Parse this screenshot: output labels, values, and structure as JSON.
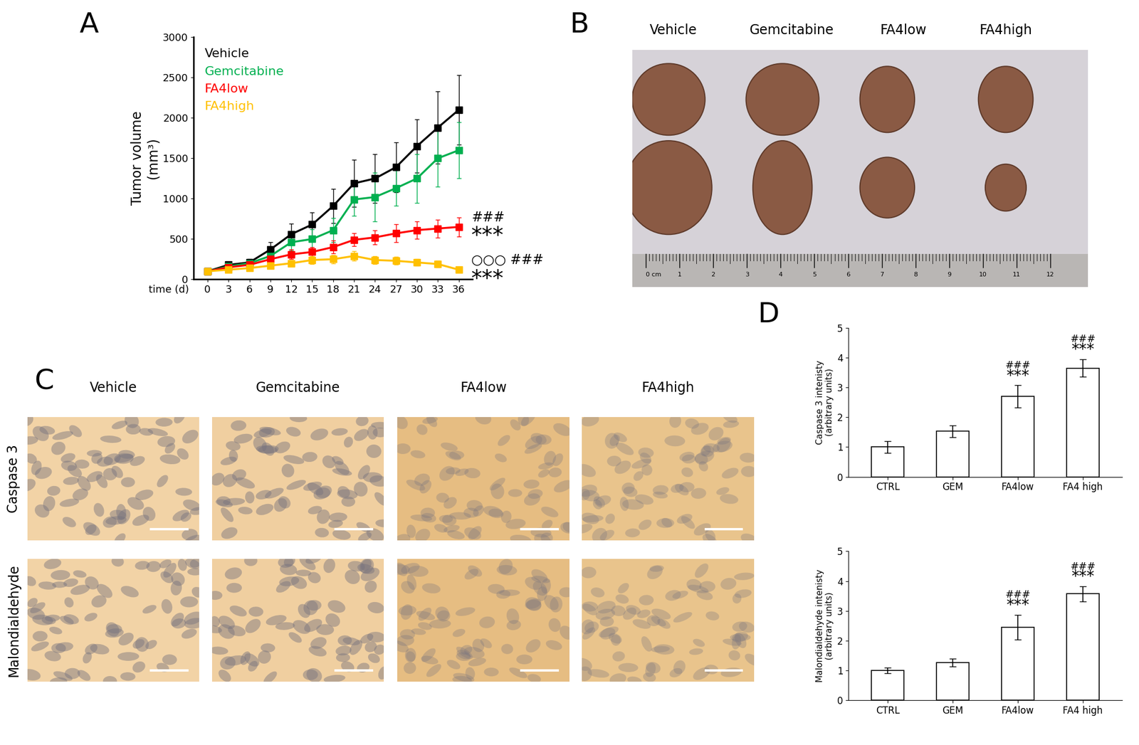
{
  "chart_data": [
    {
      "type": "line",
      "panel": "A",
      "xlabel": "time (d)",
      "ylabel": "Tumor volume\n(mm³)",
      "x": [
        0,
        3,
        6,
        9,
        12,
        15,
        18,
        21,
        24,
        27,
        30,
        33,
        36
      ],
      "xlim": [
        -2,
        38
      ],
      "xticks": [
        0,
        3,
        6,
        9,
        12,
        15,
        18,
        21,
        24,
        27,
        30,
        33,
        36
      ],
      "ylim": [
        0,
        3000
      ],
      "yticks": [
        0,
        500,
        1000,
        1500,
        2000,
        2500,
        3000
      ],
      "legend": "upper left",
      "marker": "square",
      "line_style": "solid",
      "series": [
        {
          "name": "Vehicle",
          "color": "#000000",
          "values": [
            100,
            180,
            210,
            370,
            560,
            680,
            910,
            1190,
            1250,
            1390,
            1650,
            1880,
            2100
          ],
          "errors": [
            0,
            30,
            40,
            90,
            130,
            150,
            210,
            290,
            300,
            310,
            330,
            450,
            430
          ]
        },
        {
          "name": "Gemcitabine",
          "color": "#00b050",
          "values": [
            100,
            160,
            200,
            290,
            460,
            500,
            610,
            990,
            1020,
            1130,
            1250,
            1500,
            1600
          ],
          "errors": [
            0,
            20,
            30,
            60,
            100,
            120,
            150,
            200,
            300,
            220,
            300,
            350,
            350
          ]
        },
        {
          "name": "FA4low",
          "color": "#ff0000",
          "values": [
            100,
            150,
            180,
            250,
            310,
            340,
            400,
            490,
            520,
            570,
            610,
            630,
            650
          ],
          "errors": [
            0,
            20,
            25,
            40,
            60,
            60,
            80,
            80,
            90,
            110,
            110,
            110,
            120
          ]
        },
        {
          "name": "FA4high",
          "color": "#ffc000",
          "values": [
            100,
            120,
            140,
            170,
            200,
            240,
            250,
            290,
            240,
            230,
            210,
            190,
            120
          ],
          "errors": [
            0,
            15,
            20,
            30,
            40,
            50,
            50,
            60,
            50,
            50,
            40,
            40,
            30
          ]
        }
      ],
      "significance": [
        {
          "series": "FA4low",
          "lines": [
            "###",
            "***"
          ]
        },
        {
          "series": "FA4high",
          "lines": [
            "○○○ ###",
            "***"
          ]
        }
      ]
    },
    {
      "type": "bar",
      "panel": "D",
      "ylabel": "Caspase 3 intenisty\n(arbitrary units)",
      "categories": [
        "CTRL",
        "GEM",
        "FA4low",
        "FA4 high"
      ],
      "values": [
        1.0,
        1.53,
        2.7,
        3.65
      ],
      "errors": [
        0.2,
        0.2,
        0.37,
        0.3
      ],
      "color": "#ffffff",
      "ylim": [
        0,
        5
      ],
      "yticks": [
        0,
        1,
        2,
        3,
        4,
        5
      ],
      "significance": [
        [],
        [],
        [
          "###",
          "***"
        ],
        [
          "###",
          "***"
        ]
      ]
    },
    {
      "type": "bar",
      "ylabel": "Malondialdehyde intenisty\n(arbitrary units)",
      "categories": [
        "CTRL",
        "GEM",
        "FA4low",
        "FA4 high"
      ],
      "values": [
        1.0,
        1.27,
        2.45,
        3.57
      ],
      "errors": [
        0.1,
        0.13,
        0.42,
        0.25
      ],
      "color": "#ffffff",
      "ylim": [
        0,
        5
      ],
      "yticks": [
        0,
        1,
        2,
        3,
        4,
        5
      ],
      "significance": [
        [],
        [],
        [
          "###",
          "***"
        ],
        [
          "###",
          "***"
        ]
      ]
    }
  ],
  "photo": {
    "panel": "B",
    "labels": [
      "Vehicle",
      "Gemcitabine",
      "FA4low",
      "FA4high"
    ],
    "ruler_labels": [
      "0 cm",
      "1",
      "2",
      "3",
      "4",
      "5",
      "6",
      "7",
      "8",
      "9",
      "10",
      "11",
      "12"
    ]
  },
  "micrographs": {
    "panel": "C",
    "columns": [
      "Vehicle",
      "Gemcitabine",
      "FA4low",
      "FA4high"
    ],
    "rows": [
      "Caspase 3",
      "Malondialdehyde"
    ]
  }
}
